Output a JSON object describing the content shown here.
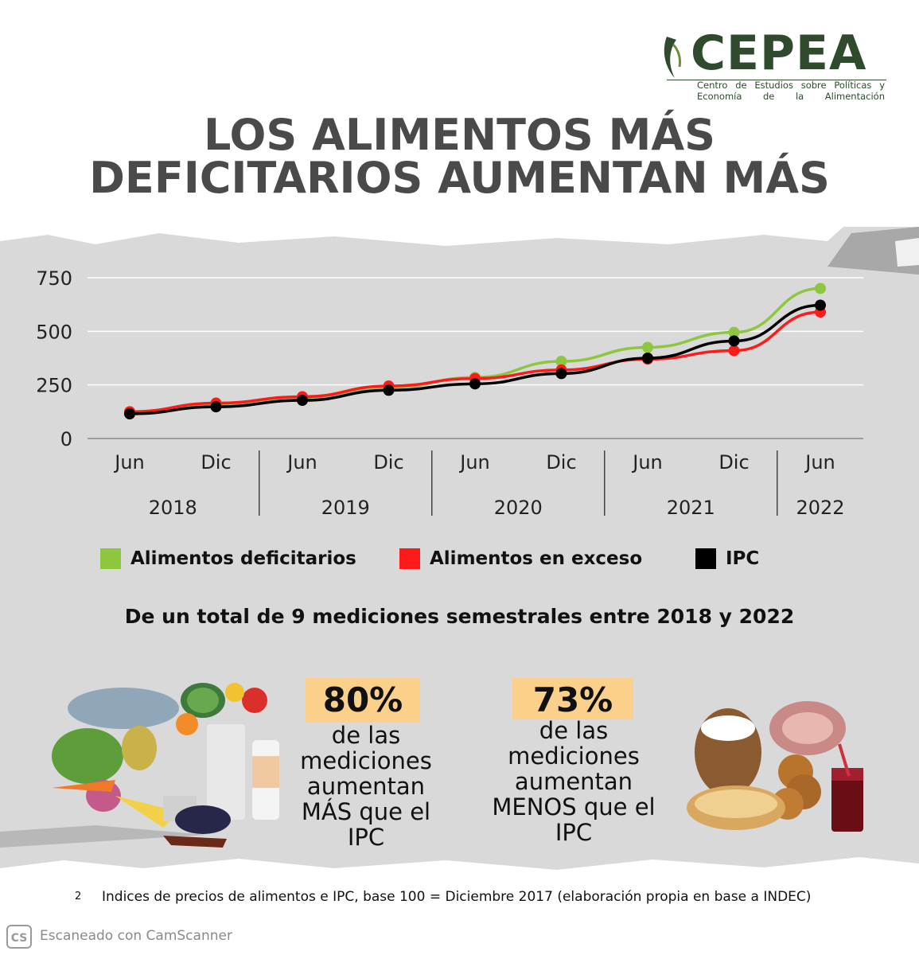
{
  "logo": {
    "name": "CEPEA",
    "subtitle_line1": "Centro de Estudios sobre Políticas y",
    "subtitle_line2": "Economía de la Alimentación"
  },
  "title": {
    "line1": "LOS ALIMENTOS MÁS",
    "line2": "DEFICITARIOS AUMENTAN MÁS"
  },
  "chart_data": {
    "type": "line",
    "categories": [
      "Jun",
      "Dic",
      "Jun",
      "Dic",
      "Jun",
      "Dic",
      "Jun",
      "Dic",
      "Jun"
    ],
    "year_groups": [
      {
        "label": "2018",
        "span": 2
      },
      {
        "label": "2019",
        "span": 2
      },
      {
        "label": "2020",
        "span": 2
      },
      {
        "label": "2021",
        "span": 2
      },
      {
        "label": "2022",
        "span": 1
      }
    ],
    "series": [
      {
        "name": "Alimentos deficitarios",
        "color": "#8dc63f",
        "values": [
          120,
          155,
          185,
          235,
          285,
          360,
          425,
          495,
          700
        ]
      },
      {
        "name": "Alimentos en exceso",
        "color": "#ff1a1a",
        "values": [
          125,
          165,
          195,
          245,
          280,
          320,
          370,
          410,
          590
        ]
      },
      {
        "name": "IPC",
        "color": "#000000",
        "values": [
          115,
          148,
          178,
          225,
          255,
          303,
          375,
          455,
          622
        ]
      }
    ],
    "yticks": [
      0,
      250,
      500,
      750
    ],
    "ylim": [
      0,
      750
    ],
    "grid": true,
    "legend_position": "bottom"
  },
  "summary": "De un total de 9 mediciones semestrales entre 2018 y 2022",
  "stats": [
    {
      "value": "80%",
      "text_lines": [
        "de las",
        "mediciones",
        "aumentan",
        "MÁS que el",
        "IPC"
      ]
    },
    {
      "value": "73%",
      "text_lines": [
        "de las",
        "mediciones",
        "aumentan",
        "MENOS que el",
        "IPC"
      ]
    }
  ],
  "footnote_number": "2",
  "footnote": "Indices de precios de alimentos e IPC, base 100 = Diciembre 2017 (elaboración propia en base a INDEC)",
  "scanner": {
    "badge": "CS",
    "text": "Escaneado con CamScanner"
  }
}
